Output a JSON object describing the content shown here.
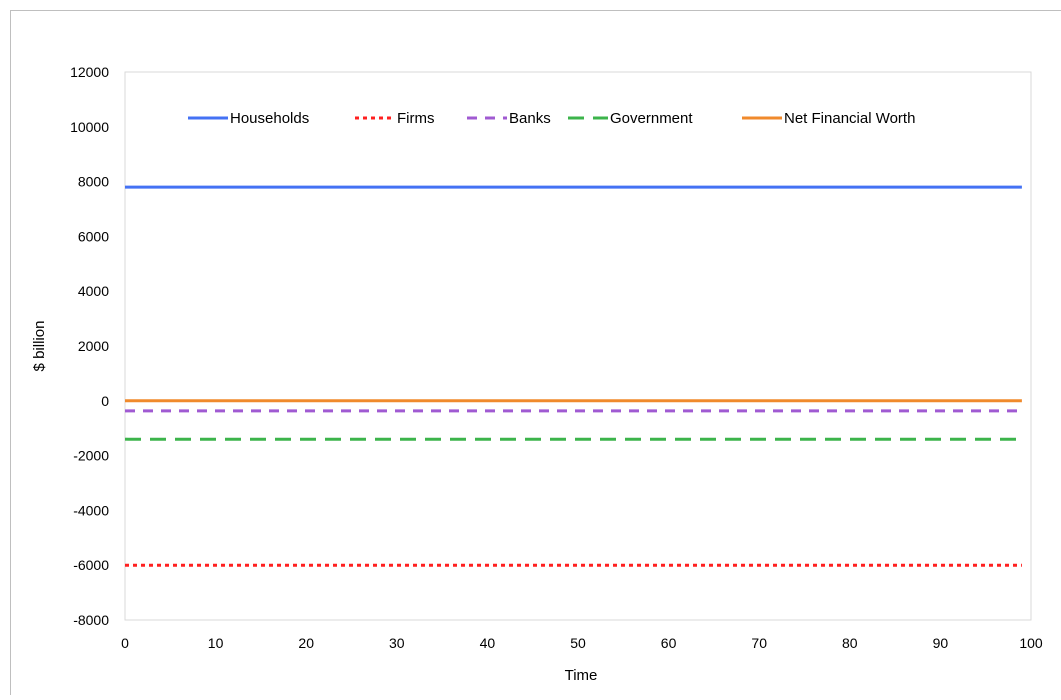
{
  "chart_data": {
    "type": "line",
    "title": "",
    "xlabel": "Time",
    "ylabel": "$ billion",
    "xlim": [
      0,
      100
    ],
    "ylim": [
      -8000,
      12000
    ],
    "x_ticks": [
      "0",
      "10",
      "20",
      "30",
      "40",
      "50",
      "60",
      "70",
      "80",
      "90",
      "100"
    ],
    "y_ticks": [
      "-8000",
      "-6000",
      "-4000",
      "-2000",
      "0",
      "2000",
      "4000",
      "6000",
      "8000",
      "10000",
      "12000"
    ],
    "grid": false,
    "legend_position": "top",
    "x": [
      0,
      99
    ],
    "series": [
      {
        "name": "Households",
        "values": [
          7800,
          7800
        ],
        "color": "#4472f4",
        "style": "solid"
      },
      {
        "name": "Firms",
        "values": [
          -6000,
          -6000
        ],
        "color": "#ff2020",
        "style": "dotted"
      },
      {
        "name": "Banks",
        "values": [
          -370,
          -370
        ],
        "color": "#a05ad2",
        "style": "dashed"
      },
      {
        "name": "Government",
        "values": [
          -1400,
          -1400
        ],
        "color": "#3cb44b",
        "style": "long-dashed"
      },
      {
        "name": "Net Financial Worth",
        "values": [
          0,
          0
        ],
        "color": "#f08a2c",
        "style": "solid"
      }
    ]
  }
}
